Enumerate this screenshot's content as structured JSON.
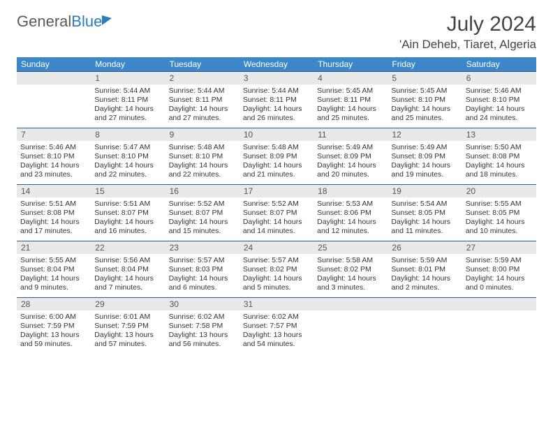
{
  "logo": {
    "text1": "General",
    "text2": "Blue"
  },
  "title": "July 2024",
  "location": "'Ain Deheb, Tiaret, Algeria",
  "dow": [
    "Sunday",
    "Monday",
    "Tuesday",
    "Wednesday",
    "Thursday",
    "Friday",
    "Saturday"
  ],
  "colors": {
    "header_bg": "#3b87c8",
    "daynum_bg": "#e9e9e9",
    "rule": "#2a5a8a",
    "text": "#333333"
  },
  "weeks": [
    {
      "nums": [
        "",
        "1",
        "2",
        "3",
        "4",
        "5",
        "6"
      ],
      "cells": [
        {},
        {
          "sr": "Sunrise: 5:44 AM",
          "ss": "Sunset: 8:11 PM",
          "dl1": "Daylight: 14 hours",
          "dl2": "and 27 minutes."
        },
        {
          "sr": "Sunrise: 5:44 AM",
          "ss": "Sunset: 8:11 PM",
          "dl1": "Daylight: 14 hours",
          "dl2": "and 27 minutes."
        },
        {
          "sr": "Sunrise: 5:44 AM",
          "ss": "Sunset: 8:11 PM",
          "dl1": "Daylight: 14 hours",
          "dl2": "and 26 minutes."
        },
        {
          "sr": "Sunrise: 5:45 AM",
          "ss": "Sunset: 8:11 PM",
          "dl1": "Daylight: 14 hours",
          "dl2": "and 25 minutes."
        },
        {
          "sr": "Sunrise: 5:45 AM",
          "ss": "Sunset: 8:10 PM",
          "dl1": "Daylight: 14 hours",
          "dl2": "and 25 minutes."
        },
        {
          "sr": "Sunrise: 5:46 AM",
          "ss": "Sunset: 8:10 PM",
          "dl1": "Daylight: 14 hours",
          "dl2": "and 24 minutes."
        }
      ]
    },
    {
      "nums": [
        "7",
        "8",
        "9",
        "10",
        "11",
        "12",
        "13"
      ],
      "cells": [
        {
          "sr": "Sunrise: 5:46 AM",
          "ss": "Sunset: 8:10 PM",
          "dl1": "Daylight: 14 hours",
          "dl2": "and 23 minutes."
        },
        {
          "sr": "Sunrise: 5:47 AM",
          "ss": "Sunset: 8:10 PM",
          "dl1": "Daylight: 14 hours",
          "dl2": "and 22 minutes."
        },
        {
          "sr": "Sunrise: 5:48 AM",
          "ss": "Sunset: 8:10 PM",
          "dl1": "Daylight: 14 hours",
          "dl2": "and 22 minutes."
        },
        {
          "sr": "Sunrise: 5:48 AM",
          "ss": "Sunset: 8:09 PM",
          "dl1": "Daylight: 14 hours",
          "dl2": "and 21 minutes."
        },
        {
          "sr": "Sunrise: 5:49 AM",
          "ss": "Sunset: 8:09 PM",
          "dl1": "Daylight: 14 hours",
          "dl2": "and 20 minutes."
        },
        {
          "sr": "Sunrise: 5:49 AM",
          "ss": "Sunset: 8:09 PM",
          "dl1": "Daylight: 14 hours",
          "dl2": "and 19 minutes."
        },
        {
          "sr": "Sunrise: 5:50 AM",
          "ss": "Sunset: 8:08 PM",
          "dl1": "Daylight: 14 hours",
          "dl2": "and 18 minutes."
        }
      ]
    },
    {
      "nums": [
        "14",
        "15",
        "16",
        "17",
        "18",
        "19",
        "20"
      ],
      "cells": [
        {
          "sr": "Sunrise: 5:51 AM",
          "ss": "Sunset: 8:08 PM",
          "dl1": "Daylight: 14 hours",
          "dl2": "and 17 minutes."
        },
        {
          "sr": "Sunrise: 5:51 AM",
          "ss": "Sunset: 8:07 PM",
          "dl1": "Daylight: 14 hours",
          "dl2": "and 16 minutes."
        },
        {
          "sr": "Sunrise: 5:52 AM",
          "ss": "Sunset: 8:07 PM",
          "dl1": "Daylight: 14 hours",
          "dl2": "and 15 minutes."
        },
        {
          "sr": "Sunrise: 5:52 AM",
          "ss": "Sunset: 8:07 PM",
          "dl1": "Daylight: 14 hours",
          "dl2": "and 14 minutes."
        },
        {
          "sr": "Sunrise: 5:53 AM",
          "ss": "Sunset: 8:06 PM",
          "dl1": "Daylight: 14 hours",
          "dl2": "and 12 minutes."
        },
        {
          "sr": "Sunrise: 5:54 AM",
          "ss": "Sunset: 8:05 PM",
          "dl1": "Daylight: 14 hours",
          "dl2": "and 11 minutes."
        },
        {
          "sr": "Sunrise: 5:55 AM",
          "ss": "Sunset: 8:05 PM",
          "dl1": "Daylight: 14 hours",
          "dl2": "and 10 minutes."
        }
      ]
    },
    {
      "nums": [
        "21",
        "22",
        "23",
        "24",
        "25",
        "26",
        "27"
      ],
      "cells": [
        {
          "sr": "Sunrise: 5:55 AM",
          "ss": "Sunset: 8:04 PM",
          "dl1": "Daylight: 14 hours",
          "dl2": "and 9 minutes."
        },
        {
          "sr": "Sunrise: 5:56 AM",
          "ss": "Sunset: 8:04 PM",
          "dl1": "Daylight: 14 hours",
          "dl2": "and 7 minutes."
        },
        {
          "sr": "Sunrise: 5:57 AM",
          "ss": "Sunset: 8:03 PM",
          "dl1": "Daylight: 14 hours",
          "dl2": "and 6 minutes."
        },
        {
          "sr": "Sunrise: 5:57 AM",
          "ss": "Sunset: 8:02 PM",
          "dl1": "Daylight: 14 hours",
          "dl2": "and 5 minutes."
        },
        {
          "sr": "Sunrise: 5:58 AM",
          "ss": "Sunset: 8:02 PM",
          "dl1": "Daylight: 14 hours",
          "dl2": "and 3 minutes."
        },
        {
          "sr": "Sunrise: 5:59 AM",
          "ss": "Sunset: 8:01 PM",
          "dl1": "Daylight: 14 hours",
          "dl2": "and 2 minutes."
        },
        {
          "sr": "Sunrise: 5:59 AM",
          "ss": "Sunset: 8:00 PM",
          "dl1": "Daylight: 14 hours",
          "dl2": "and 0 minutes."
        }
      ]
    },
    {
      "nums": [
        "28",
        "29",
        "30",
        "31",
        "",
        "",
        ""
      ],
      "cells": [
        {
          "sr": "Sunrise: 6:00 AM",
          "ss": "Sunset: 7:59 PM",
          "dl1": "Daylight: 13 hours",
          "dl2": "and 59 minutes."
        },
        {
          "sr": "Sunrise: 6:01 AM",
          "ss": "Sunset: 7:59 PM",
          "dl1": "Daylight: 13 hours",
          "dl2": "and 57 minutes."
        },
        {
          "sr": "Sunrise: 6:02 AM",
          "ss": "Sunset: 7:58 PM",
          "dl1": "Daylight: 13 hours",
          "dl2": "and 56 minutes."
        },
        {
          "sr": "Sunrise: 6:02 AM",
          "ss": "Sunset: 7:57 PM",
          "dl1": "Daylight: 13 hours",
          "dl2": "and 54 minutes."
        },
        {},
        {},
        {}
      ]
    }
  ]
}
